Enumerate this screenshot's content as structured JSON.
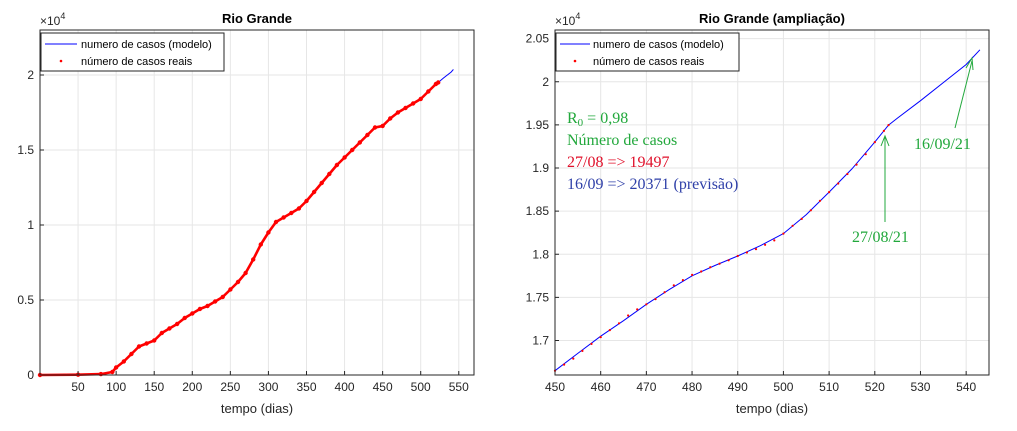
{
  "chart_data": [
    {
      "type": "line",
      "title": "Rio Grande",
      "xlabel": "tempo (dias)",
      "ylabel": "",
      "xlim": [
        0,
        570
      ],
      "ylim": [
        0,
        23000
      ],
      "xticks": [
        50,
        100,
        150,
        200,
        250,
        300,
        350,
        400,
        450,
        500,
        550
      ],
      "yticks": [
        0,
        5000,
        10000,
        15000,
        20000
      ],
      "ytick_labels": [
        "0",
        "0.5",
        "1",
        "1.5",
        "2"
      ],
      "exponent_label": "×10",
      "exponent_power": "4",
      "grid": true,
      "legend_position": "top-left",
      "legend": [
        "numero de casos (modelo)",
        "número de casos reais"
      ],
      "series": [
        {
          "name": "numero de casos (modelo)",
          "style": "line",
          "color": "#0000ff",
          "x": [
            0,
            50,
            80,
            95,
            100,
            110,
            120,
            130,
            140,
            150,
            160,
            170,
            180,
            190,
            200,
            210,
            220,
            230,
            240,
            250,
            260,
            270,
            280,
            290,
            300,
            310,
            320,
            330,
            340,
            350,
            360,
            370,
            380,
            390,
            400,
            410,
            420,
            430,
            440,
            450,
            460,
            470,
            480,
            490,
            500,
            510,
            520,
            523,
            530,
            540,
            543
          ],
          "y": [
            0,
            20,
            60,
            200,
            500,
            900,
            1400,
            1900,
            2100,
            2300,
            2800,
            3100,
            3400,
            3800,
            4100,
            4400,
            4600,
            4900,
            5200,
            5700,
            6200,
            6800,
            7700,
            8700,
            9500,
            10200,
            10500,
            10800,
            11100,
            11600,
            12200,
            12800,
            13400,
            14000,
            14500,
            15000,
            15500,
            16000,
            16500,
            16600,
            17100,
            17500,
            17800,
            18100,
            18400,
            18900,
            19400,
            19497,
            19800,
            20200,
            20371
          ]
        },
        {
          "name": "número de casos reais",
          "style": "dots",
          "color": "#ff0000",
          "x": [
            0,
            50,
            80,
            95,
            100,
            110,
            120,
            130,
            140,
            150,
            160,
            170,
            180,
            190,
            200,
            210,
            220,
            230,
            240,
            250,
            260,
            270,
            280,
            290,
            300,
            310,
            320,
            330,
            340,
            350,
            360,
            370,
            380,
            390,
            400,
            410,
            420,
            430,
            440,
            450,
            460,
            470,
            480,
            490,
            500,
            510,
            520,
            523
          ],
          "y": [
            0,
            20,
            60,
            200,
            500,
            900,
            1400,
            1900,
            2100,
            2300,
            2800,
            3100,
            3400,
            3800,
            4100,
            4400,
            4600,
            4900,
            5200,
            5700,
            6200,
            6800,
            7700,
            8700,
            9500,
            10200,
            10500,
            10800,
            11100,
            11600,
            12200,
            12800,
            13400,
            14000,
            14500,
            15000,
            15500,
            16000,
            16500,
            16600,
            17100,
            17500,
            17800,
            18100,
            18400,
            18900,
            19400,
            19497
          ]
        }
      ]
    },
    {
      "type": "line",
      "title": "Rio Grande (ampliação)",
      "xlabel": "tempo (dias)",
      "ylabel": "",
      "xlim": [
        450,
        545
      ],
      "ylim": [
        16600,
        20600
      ],
      "xticks": [
        450,
        460,
        470,
        480,
        490,
        500,
        510,
        520,
        530,
        540
      ],
      "yticks": [
        17000,
        17500,
        18000,
        18500,
        19000,
        19500,
        20000,
        20500
      ],
      "ytick_labels": [
        "1.7",
        "1.75",
        "1.8",
        "1.85",
        "1.9",
        "1.95",
        "2",
        "2.05"
      ],
      "exponent_label": "×10",
      "exponent_power": "4",
      "grid": true,
      "legend_position": "top-left",
      "legend": [
        "numero de casos (modelo)",
        "número de casos reais"
      ],
      "series": [
        {
          "name": "numero de casos (modelo)",
          "style": "line",
          "color": "#0000ff",
          "x": [
            450,
            455,
            460,
            465,
            470,
            475,
            480,
            485,
            490,
            495,
            500,
            505,
            510,
            515,
            520,
            523,
            525,
            530,
            535,
            540,
            543
          ],
          "y": [
            16650,
            16850,
            17050,
            17230,
            17420,
            17590,
            17750,
            17870,
            17980,
            18100,
            18240,
            18460,
            18720,
            18990,
            19300,
            19497,
            19580,
            19780,
            19990,
            20200,
            20371
          ]
        },
        {
          "name": "número de casos reais",
          "style": "dots",
          "color": "#ff0000",
          "x": [
            450,
            452,
            454,
            456,
            458,
            460,
            462,
            464,
            466,
            468,
            470,
            472,
            474,
            476,
            478,
            480,
            482,
            484,
            486,
            488,
            490,
            492,
            494,
            496,
            498,
            500,
            502,
            504,
            506,
            508,
            510,
            512,
            514,
            516,
            518,
            520,
            522,
            523
          ],
          "y": [
            16650,
            16720,
            16790,
            16880,
            16960,
            17040,
            17120,
            17200,
            17290,
            17360,
            17420,
            17480,
            17560,
            17640,
            17700,
            17760,
            17800,
            17850,
            17890,
            17930,
            17980,
            18020,
            18060,
            18110,
            18160,
            18240,
            18330,
            18410,
            18510,
            18620,
            18720,
            18820,
            18930,
            19040,
            19160,
            19300,
            19430,
            19497
          ]
        }
      ],
      "annotations": {
        "r0": "R",
        "r0_sub": "0",
        "r0_value": " = 0,98",
        "cases_label": "Número de casos",
        "real_line": "27/08 => 19497",
        "forecast_line": "16/09 => 20371 (previsão)",
        "arrow_real_label": "27/08/21",
        "arrow_forecast_label": "16/09/21",
        "arrow_real_target": {
          "x": 523,
          "y": 19497
        },
        "arrow_forecast_target": {
          "x": 543,
          "y": 20371
        },
        "color_green": "#22a83c",
        "color_red": "#e0102a",
        "color_blue": "#2e3fa8"
      }
    }
  ]
}
